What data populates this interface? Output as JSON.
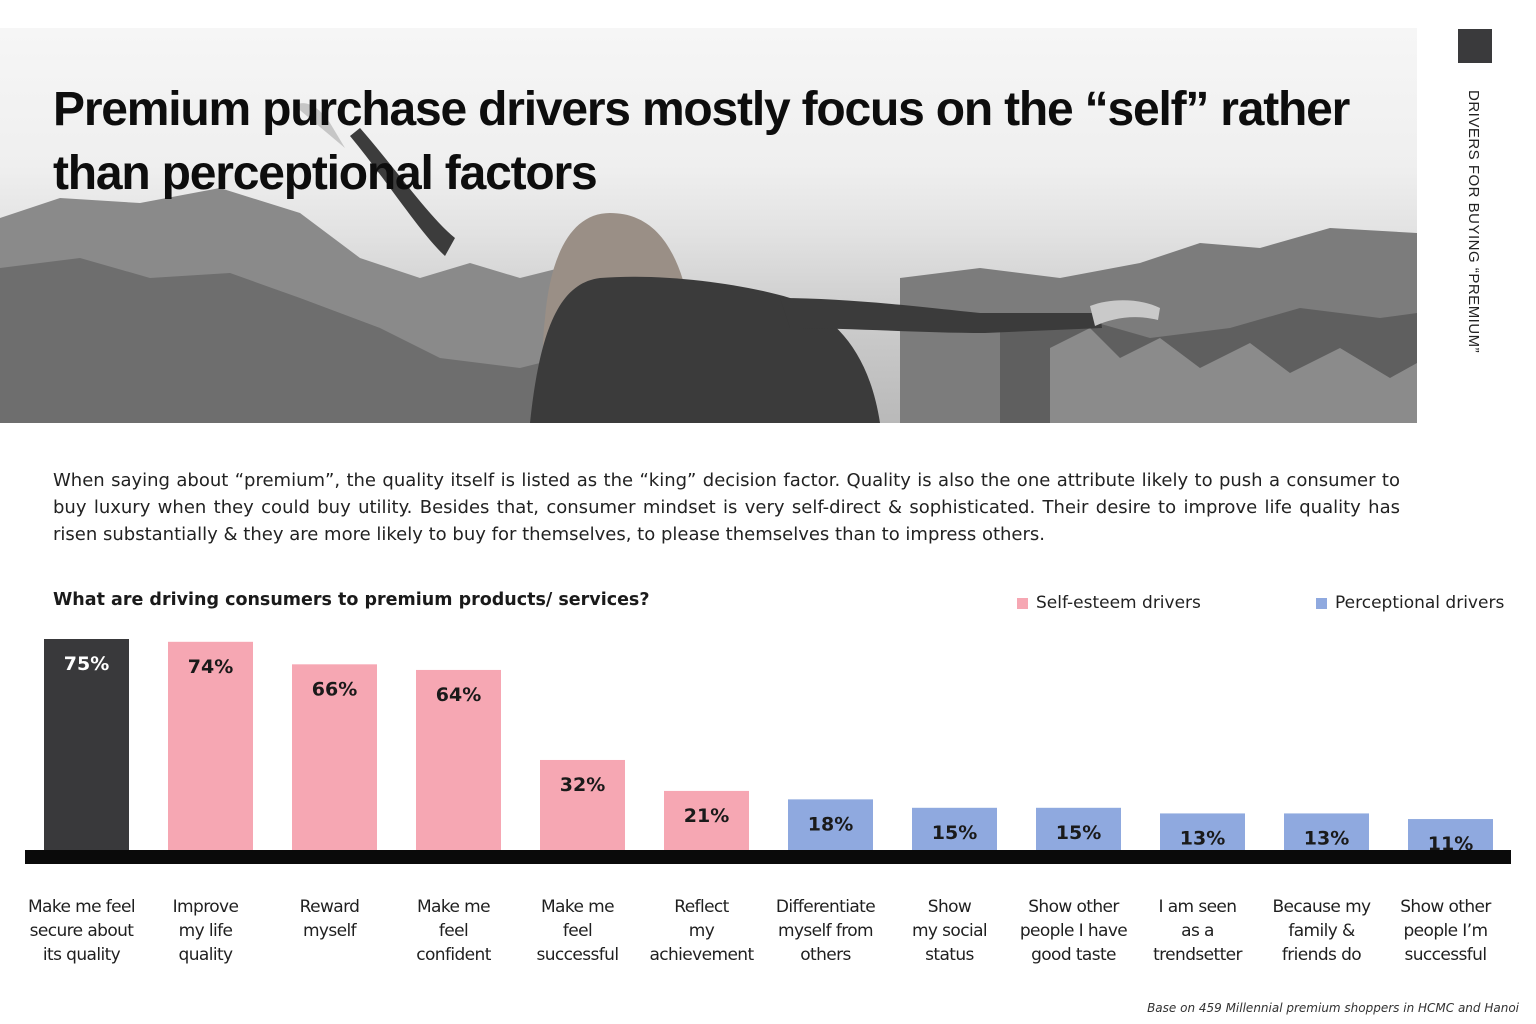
{
  "header": {
    "title": "Premium purchase drivers mostly focus on the “self” rather than perceptional factors",
    "side_label": "DRIVERS FOR BUYING “PREMIUM”"
  },
  "intro_text": "When saying about “premium”, the quality itself is listed as the “king” decision factor. Quality is also the one attribute likely to push a consumer to buy luxury when they could buy utility. Besides that, consumer mindset is very self-direct & sophisticated. Their desire to improve life quality has risen substantially & they are more likely to buy for themselves, to please themselves than to impress others.",
  "chart_heading": "What are driving consumers to premium products/ services?",
  "legend": [
    {
      "label": "Self-esteem drivers",
      "color": "#f6a7b3"
    },
    {
      "label": "Perceptional drivers",
      "color": "#8fa9df"
    }
  ],
  "footnote": "Base on 459 Millennial premium shoppers in HCMC and Hanoi",
  "chart_data": {
    "type": "bar",
    "title": "What are driving consumers to premium products/ services?",
    "ylim": [
      0,
      75
    ],
    "grid": false,
    "legend_position": "top-right",
    "value_suffix": "%",
    "categories": [
      "Make me feel secure about its quality",
      "Improve my life quality",
      "Reward myself",
      "Make me feel confident",
      "Make me feel successful",
      "Reflect my achievement",
      "Differentiate myself from others",
      "Show my social status",
      "Show other people I have good taste",
      "I am seen as a trendsetter",
      "Because my family & friends do",
      "Show other people I’m successful"
    ],
    "category_lines": [
      [
        "Make me feel",
        "secure about",
        "its quality"
      ],
      [
        "Improve",
        "my life",
        "quality"
      ],
      [
        "Reward",
        "myself"
      ],
      [
        "Make me",
        "feel",
        "confident"
      ],
      [
        "Make me",
        "feel",
        "successful"
      ],
      [
        "Reflect",
        "my",
        "achievement"
      ],
      [
        "Differentiate",
        "myself from",
        "others"
      ],
      [
        "Show",
        "my social",
        "status"
      ],
      [
        "Show other",
        "people I have",
        "good taste"
      ],
      [
        "I am seen",
        "as a",
        "trendsetter"
      ],
      [
        "Because my",
        "family &",
        "friends do"
      ],
      [
        "Show other",
        "people I’m",
        "successful"
      ]
    ],
    "values": [
      75,
      74,
      66,
      64,
      32,
      21,
      18,
      15,
      15,
      13,
      13,
      11
    ],
    "groups": [
      "highlight",
      "self",
      "self",
      "self",
      "self",
      "self",
      "perceptional",
      "perceptional",
      "perceptional",
      "perceptional",
      "perceptional",
      "perceptional"
    ],
    "colors": {
      "highlight": "#39393b",
      "self": "#f6a7b3",
      "perceptional": "#8fa9df",
      "baseline": "#0a0a0a"
    }
  }
}
